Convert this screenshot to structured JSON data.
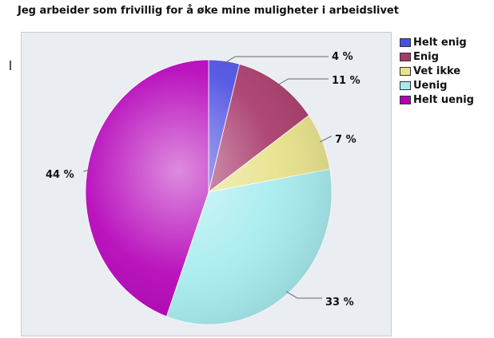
{
  "chart_data": {
    "type": "pie",
    "title": "Jeg arbeider som frivillig for å øke mine muligheter i arbeidslivet",
    "legend_position": "right",
    "label_suffix": " %",
    "slices": [
      {
        "name": "Helt enig",
        "value": 4,
        "color": "#4b4fe0"
      },
      {
        "name": "Enig",
        "value": 11,
        "color": "#a8386a"
      },
      {
        "name": "Vet ikke",
        "value": 7,
        "color": "#e8e28a"
      },
      {
        "name": "Uenig",
        "value": 33,
        "color": "#a6ecef"
      },
      {
        "name": "Helt uenig",
        "value": 44,
        "color": "#b400b8"
      }
    ]
  }
}
